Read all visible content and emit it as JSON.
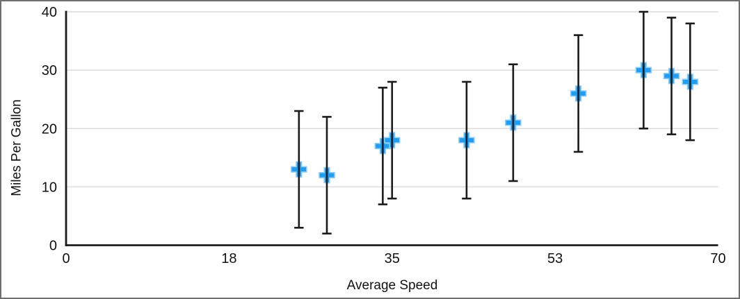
{
  "figure": {
    "background": "#ffffff",
    "border_color": "#6f6f6f"
  },
  "chart_data": {
    "type": "scatter",
    "title": "",
    "xlabel": "Average Speed",
    "ylabel": "Miles Per Gallon",
    "xlim": [
      0,
      70
    ],
    "ylim": [
      0,
      40
    ],
    "x_ticks": {
      "positions": [
        0,
        17.5,
        35,
        52.5,
        70
      ],
      "labels": [
        "0",
        "18",
        "35",
        "53",
        "70"
      ]
    },
    "y_ticks": {
      "positions": [
        0,
        10,
        20,
        30,
        40
      ],
      "labels": [
        "0",
        "10",
        "20",
        "30",
        "40"
      ]
    },
    "grid": "horizontal-only",
    "legend": "none",
    "marker": "plus",
    "marker_color": "#1d9ef5",
    "marker_edge_color": "#8ecdf8",
    "error_bar_color": "#1b1b1b",
    "axis_color": "#1b1b1b",
    "gridline_color": "#dcdcdc",
    "error_bars": "symmetric vertical, magnitude 10",
    "series": [
      {
        "points": [
          {
            "x": 25,
            "y": 13,
            "y_low": 3,
            "y_high": 23
          },
          {
            "x": 28,
            "y": 12,
            "y_low": 2,
            "y_high": 22
          },
          {
            "x": 34,
            "y": 17,
            "y_low": 7,
            "y_high": 27
          },
          {
            "x": 35,
            "y": 18,
            "y_low": 8,
            "y_high": 28
          },
          {
            "x": 43,
            "y": 18,
            "y_low": 8,
            "y_high": 28
          },
          {
            "x": 48,
            "y": 21,
            "y_low": 11,
            "y_high": 31
          },
          {
            "x": 55,
            "y": 26,
            "y_low": 16,
            "y_high": 36
          },
          {
            "x": 62,
            "y": 30,
            "y_low": 20,
            "y_high": 40
          },
          {
            "x": 65,
            "y": 29,
            "y_low": 19,
            "y_high": 39
          },
          {
            "x": 67,
            "y": 28,
            "y_low": 18,
            "y_high": 38
          }
        ]
      }
    ]
  }
}
